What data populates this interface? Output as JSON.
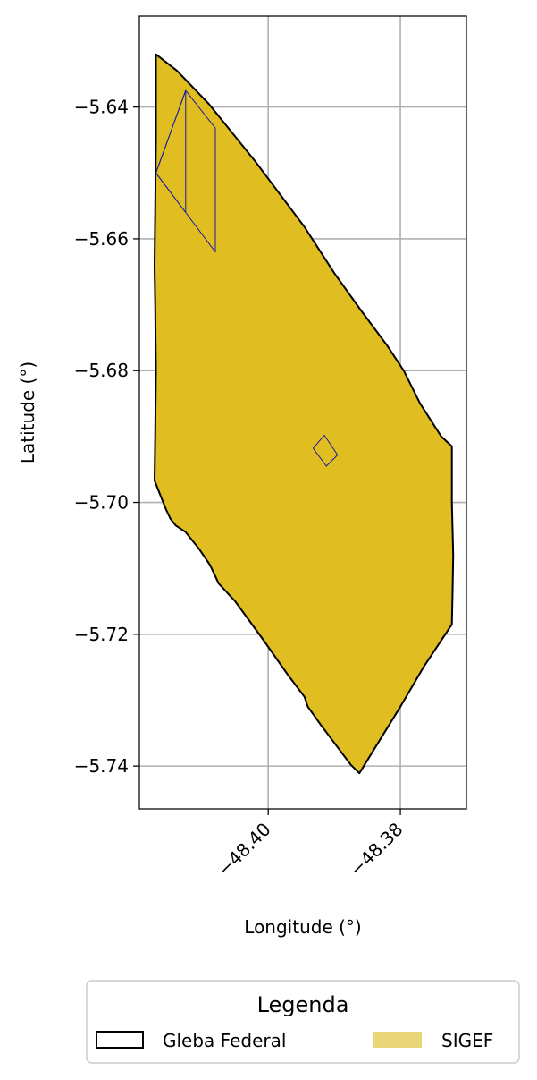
{
  "chart_data": {
    "type": "map",
    "xlabel": "Longitude (°)",
    "ylabel": "Latitude (°)",
    "xlim": [
      -48.4195,
      -48.37
    ],
    "ylim": [
      -5.7465,
      -5.6262
    ],
    "grid": true,
    "x_ticks": [
      {
        "value": -48.4,
        "label": "−48.40"
      },
      {
        "value": -48.38,
        "label": "−48.38"
      }
    ],
    "y_ticks": [
      {
        "value": -5.64,
        "label": "−5.64"
      },
      {
        "value": -5.66,
        "label": "−5.66"
      },
      {
        "value": -5.68,
        "label": "−5.68"
      },
      {
        "value": -5.7,
        "label": "−5.70"
      },
      {
        "value": -5.72,
        "label": "−5.72"
      },
      {
        "value": -5.74,
        "label": "−5.74"
      }
    ],
    "colors": {
      "gleba_edge": "#000000",
      "sigef_fill": "#e0be22",
      "sigef_legend": "#e8d679",
      "sigef_edge": "#1a1aa0",
      "grid": "#b0b0b0"
    },
    "gleba_federal": [
      [
        -48.417,
        -5.632
      ],
      [
        -48.4138,
        -5.6345
      ],
      [
        -48.409,
        -5.6395
      ],
      [
        -48.402,
        -5.6482
      ],
      [
        -48.3945,
        -5.6582
      ],
      [
        -48.39,
        -5.6652
      ],
      [
        -48.386,
        -5.6708
      ],
      [
        -48.382,
        -5.6762
      ],
      [
        -48.3795,
        -5.68
      ],
      [
        -48.377,
        -5.685
      ],
      [
        -48.3738,
        -5.69
      ],
      [
        -48.3722,
        -5.6915
      ],
      [
        -48.3722,
        -5.7
      ],
      [
        -48.372,
        -5.708
      ],
      [
        -48.3721,
        -5.7135
      ],
      [
        -48.3722,
        -5.7185
      ],
      [
        -48.3765,
        -5.725
      ],
      [
        -48.38,
        -5.731
      ],
      [
        -48.384,
        -5.7375
      ],
      [
        -48.3862,
        -5.7411
      ],
      [
        -48.3875,
        -5.7398
      ],
      [
        -48.392,
        -5.7338
      ],
      [
        -48.394,
        -5.731
      ],
      [
        -48.3945,
        -5.7295
      ],
      [
        -48.397,
        -5.7262
      ],
      [
        -48.401,
        -5.7205
      ],
      [
        -48.405,
        -5.715
      ],
      [
        -48.4075,
        -5.7123
      ],
      [
        -48.4088,
        -5.7095
      ],
      [
        -48.4105,
        -5.707
      ],
      [
        -48.4125,
        -5.7045
      ],
      [
        -48.414,
        -5.7035
      ],
      [
        -48.4148,
        -5.7025
      ],
      [
        -48.4155,
        -5.701
      ],
      [
        -48.4172,
        -5.6967
      ],
      [
        -48.4171,
        -5.69
      ],
      [
        -48.417,
        -5.68
      ],
      [
        -48.4171,
        -5.67
      ],
      [
        -48.4172,
        -5.664
      ],
      [
        -48.4171,
        -5.656
      ],
      [
        -48.417,
        -5.645
      ],
      [
        -48.417,
        -5.632
      ]
    ],
    "sigef_parcels": [
      [
        [
          -48.4125,
          -5.6375
        ],
        [
          -48.408,
          -5.6432
        ],
        [
          -48.408,
          -5.662
        ],
        [
          -48.4125,
          -5.656
        ],
        [
          -48.417,
          -5.65
        ],
        [
          -48.417,
          -5.65
        ]
      ],
      [
        [
          -48.4125,
          -5.6375
        ],
        [
          -48.4125,
          -5.656
        ],
        [
          -48.417,
          -5.65
        ]
      ],
      [
        [
          -48.3932,
          -5.6918
        ],
        [
          -48.3915,
          -5.6898
        ],
        [
          -48.3895,
          -5.6928
        ],
        [
          -48.3912,
          -5.6945
        ]
      ]
    ],
    "legend": {
      "title": "Legenda",
      "entries": [
        {
          "label": "Gleba Federal",
          "style": "outline"
        },
        {
          "label": "SIGEF",
          "style": "fill"
        }
      ],
      "placement": "below"
    }
  }
}
